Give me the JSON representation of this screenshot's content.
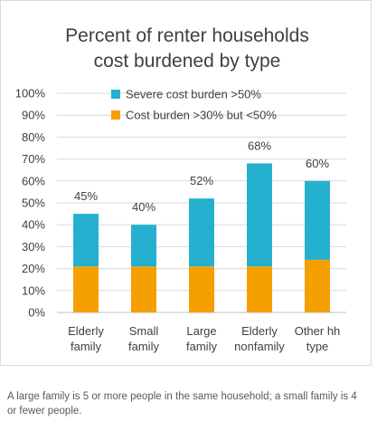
{
  "chart_data": {
    "type": "bar",
    "stacked": true,
    "title": [
      "Percent of renter households",
      "cost burdened by type"
    ],
    "categories": [
      [
        "Elderly",
        "family"
      ],
      [
        "Small",
        "family"
      ],
      [
        "Large",
        "family"
      ],
      [
        "Elderly",
        "nonfamily"
      ],
      [
        "Other hh",
        "type"
      ]
    ],
    "series": [
      {
        "name": "Cost burden >30% but <50%",
        "color": "#f5a000",
        "values": [
          21,
          21,
          21,
          21,
          24
        ]
      },
      {
        "name": "Severe cost burden >50%",
        "color": "#26b0d0",
        "values": [
          24,
          19,
          31,
          47,
          36
        ]
      }
    ],
    "totals_labels": [
      "45%",
      "40%",
      "52%",
      "68%",
      "60%"
    ],
    "totals": [
      45,
      40,
      52,
      68,
      60
    ],
    "ylim": [
      0,
      100
    ],
    "y_ticks": [
      "0%",
      "10%",
      "20%",
      "30%",
      "40%",
      "50%",
      "60%",
      "70%",
      "80%",
      "90%",
      "100%"
    ],
    "grid": true,
    "gridline_color": "#d9d9d9",
    "legend_position": "top-center",
    "legend_order": [
      "Severe cost burden >50%",
      "Cost burden >30% but <50%"
    ]
  },
  "footnote": "A large family is 5 or more people in the same household; a small family is 4 or fewer people."
}
